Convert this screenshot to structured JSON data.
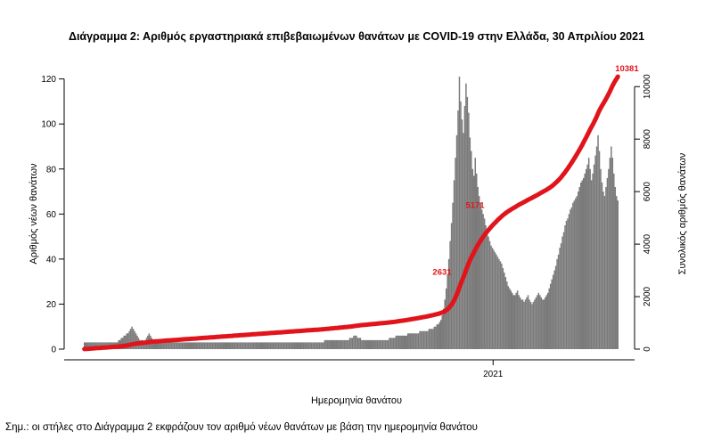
{
  "chart_data": {
    "type": "bar",
    "title": "Διάγραμμα 2: Αριθμός εργαστηριακά επιβεβαιωμένων θανάτων με COVID-19 στην Ελλάδα, 30 Απριλίου 2021",
    "xlabel": "Ημερομηνία θανάτου",
    "ylabel": "Αριθμός νέων θανάτων",
    "y2label": "Συνολικός αριθμός θανάτων",
    "ylim": [
      0,
      125
    ],
    "y2lim": [
      0,
      10381
    ],
    "yticks": [
      0,
      20,
      40,
      60,
      80,
      100,
      120
    ],
    "y2ticks": [
      0,
      2000,
      4000,
      6000,
      8000,
      10000
    ],
    "xticks": [
      {
        "label": "2021",
        "day": 310
      }
    ],
    "bar_color": "#7a7a7a",
    "line_color": "#e0141a",
    "grid": false,
    "daily_deaths": [
      3,
      3,
      3,
      3,
      3,
      3,
      3,
      3,
      3,
      3,
      3,
      3,
      3,
      3,
      3,
      3,
      3,
      3,
      3,
      3,
      3,
      3,
      3,
      3,
      3,
      3,
      4,
      4,
      5,
      5,
      6,
      6,
      7,
      7,
      8,
      9,
      10,
      9,
      8,
      7,
      6,
      5,
      4,
      4,
      4,
      3,
      4,
      5,
      6,
      7,
      6,
      5,
      4,
      4,
      3,
      3,
      3,
      3,
      3,
      3,
      3,
      3,
      3,
      3,
      3,
      3,
      3,
      3,
      3,
      3,
      3,
      3,
      3,
      3,
      3,
      3,
      3,
      3,
      3,
      3,
      3,
      3,
      3,
      3,
      3,
      3,
      3,
      3,
      3,
      3,
      3,
      3,
      3,
      3,
      3,
      3,
      3,
      3,
      3,
      3,
      3,
      3,
      3,
      3,
      3,
      3,
      3,
      3,
      3,
      3,
      3,
      3,
      3,
      3,
      3,
      3,
      3,
      3,
      3,
      3,
      3,
      3,
      3,
      3,
      3,
      3,
      3,
      3,
      3,
      3,
      3,
      3,
      3,
      3,
      3,
      3,
      3,
      3,
      3,
      3,
      3,
      3,
      3,
      3,
      3,
      3,
      3,
      3,
      3,
      3,
      3,
      3,
      3,
      3,
      3,
      3,
      3,
      3,
      3,
      3,
      3,
      3,
      3,
      3,
      3,
      3,
      3,
      3,
      3,
      3,
      3,
      3,
      3,
      3,
      3,
      3,
      3,
      3,
      3,
      3,
      3,
      3,
      4,
      4,
      4,
      4,
      4,
      4,
      4,
      4,
      4,
      4,
      4,
      4,
      4,
      4,
      4,
      4,
      4,
      4,
      4,
      5,
      5,
      5,
      6,
      6,
      6,
      5,
      5,
      5,
      4,
      4,
      4,
      4,
      4,
      4,
      4,
      4,
      4,
      4,
      4,
      4,
      4,
      4,
      4,
      4,
      4,
      4,
      4,
      4,
      4,
      5,
      5,
      5,
      5,
      5,
      6,
      6,
      6,
      6,
      6,
      6,
      6,
      6,
      6,
      7,
      7,
      7,
      7,
      7,
      7,
      7,
      7,
      7,
      8,
      8,
      8,
      8,
      8,
      8,
      8,
      9,
      9,
      9,
      9,
      10,
      10,
      11,
      11,
      12,
      13,
      15,
      18,
      22,
      27,
      33,
      40,
      48,
      56,
      65,
      75,
      85,
      95,
      106,
      121,
      110,
      102,
      96,
      108,
      118,
      112,
      105,
      94,
      88,
      80,
      77,
      85,
      78,
      72,
      68,
      65,
      62,
      60,
      58,
      55,
      52,
      50,
      48,
      46,
      45,
      44,
      43,
      42,
      41,
      40,
      39,
      38,
      36,
      34,
      32,
      30,
      28,
      27,
      26,
      25,
      24,
      24,
      25,
      26,
      24,
      23,
      22,
      22,
      21,
      22,
      23,
      24,
      22,
      21,
      20,
      21,
      22,
      23,
      24,
      25,
      24,
      23,
      22,
      22,
      23,
      24,
      25,
      27,
      29,
      31,
      33,
      35,
      37,
      40,
      42,
      45,
      47,
      50,
      52,
      55,
      57,
      58,
      60,
      62,
      63,
      65,
      66,
      67,
      68,
      70,
      72,
      74,
      75,
      76,
      78,
      80,
      82,
      85,
      80,
      75,
      78,
      82,
      86,
      90,
      95,
      88,
      80,
      74,
      70,
      68,
      72,
      76,
      80,
      85,
      90,
      85,
      78,
      72,
      68,
      66
    ],
    "annotations": [
      {
        "label": "2631",
        "value": 2631,
        "day": 270
      },
      {
        "label": "5171",
        "value": 5171,
        "day": 295
      },
      {
        "label": "10381",
        "value": 10381,
        "day": 410
      }
    ]
  },
  "note": "Σημ.: οι στήλες στο Διάγραμμα 2 εκφράζουν τον αριθμό νέων θανάτων με βάση την ημερομηνία θανάτου"
}
